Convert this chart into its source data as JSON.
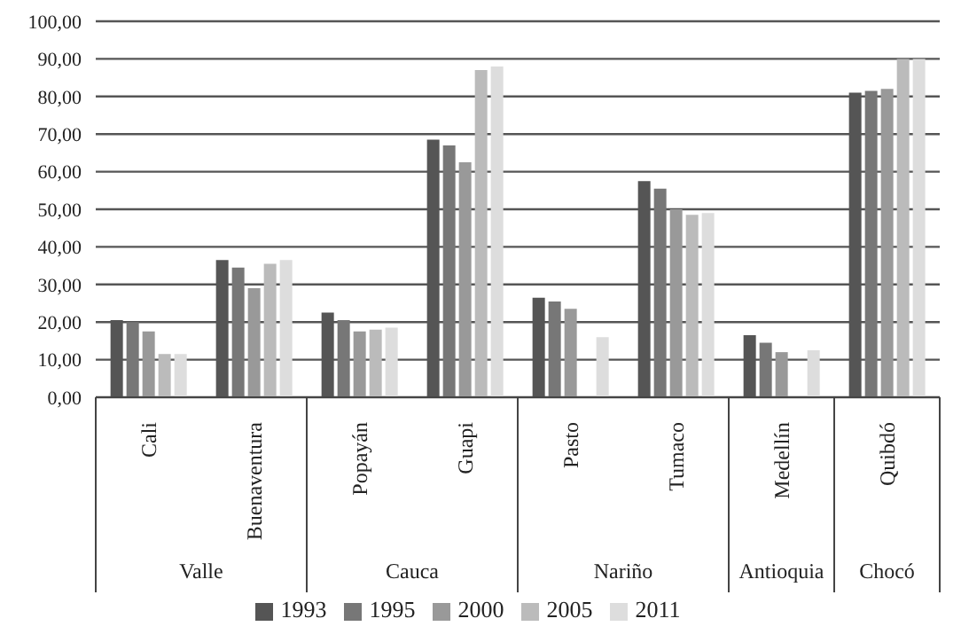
{
  "chart_data": {
    "type": "bar",
    "categories": [
      "Cali",
      "Buenaventura",
      "Popayán",
      "Guapi",
      "Pasto",
      "Tumaco",
      "Medellín",
      "Quibdó"
    ],
    "series": [
      {
        "name": "1993",
        "color": "#555555",
        "values": [
          20.5,
          36.5,
          22.5,
          68.5,
          26.5,
          57.5,
          16.5,
          81
        ]
      },
      {
        "name": "1995",
        "color": "#777777",
        "values": [
          20,
          34.5,
          20.5,
          67,
          25.5,
          55.5,
          14.5,
          81.5
        ]
      },
      {
        "name": "2000",
        "color": "#999999",
        "values": [
          17.5,
          29,
          17.5,
          62.5,
          23.5,
          50,
          12,
          82
        ]
      },
      {
        "name": "2005",
        "color": "#bbbbbb",
        "values": [
          11.5,
          35.5,
          18,
          87,
          null,
          48.5,
          null,
          90
        ]
      },
      {
        "name": "2011",
        "color": "#dddddd",
        "values": [
          11.5,
          36.5,
          18.5,
          88,
          16,
          49,
          12.5,
          90
        ]
      }
    ],
    "annotations": [
      "Valle",
      "Cauca",
      "Nariño",
      "Antioquia",
      "Chocó"
    ],
    "ylim": [
      0,
      100
    ],
    "yticks": [
      {
        "value": 0,
        "label": "0,00"
      },
      {
        "value": 10,
        "label": "10,00"
      },
      {
        "value": 20,
        "label": "20,00"
      },
      {
        "value": 30,
        "label": "30,00"
      },
      {
        "value": 40,
        "label": "40,00"
      },
      {
        "value": 50,
        "label": "50,00"
      },
      {
        "value": 60,
        "label": "60,00"
      },
      {
        "value": 70,
        "label": "70,00"
      },
      {
        "value": 80,
        "label": "80,00"
      },
      {
        "value": 90,
        "label": "90,00"
      },
      {
        "value": 100,
        "label": "100,00"
      }
    ],
    "grid": "y",
    "legend": "bottom"
  }
}
